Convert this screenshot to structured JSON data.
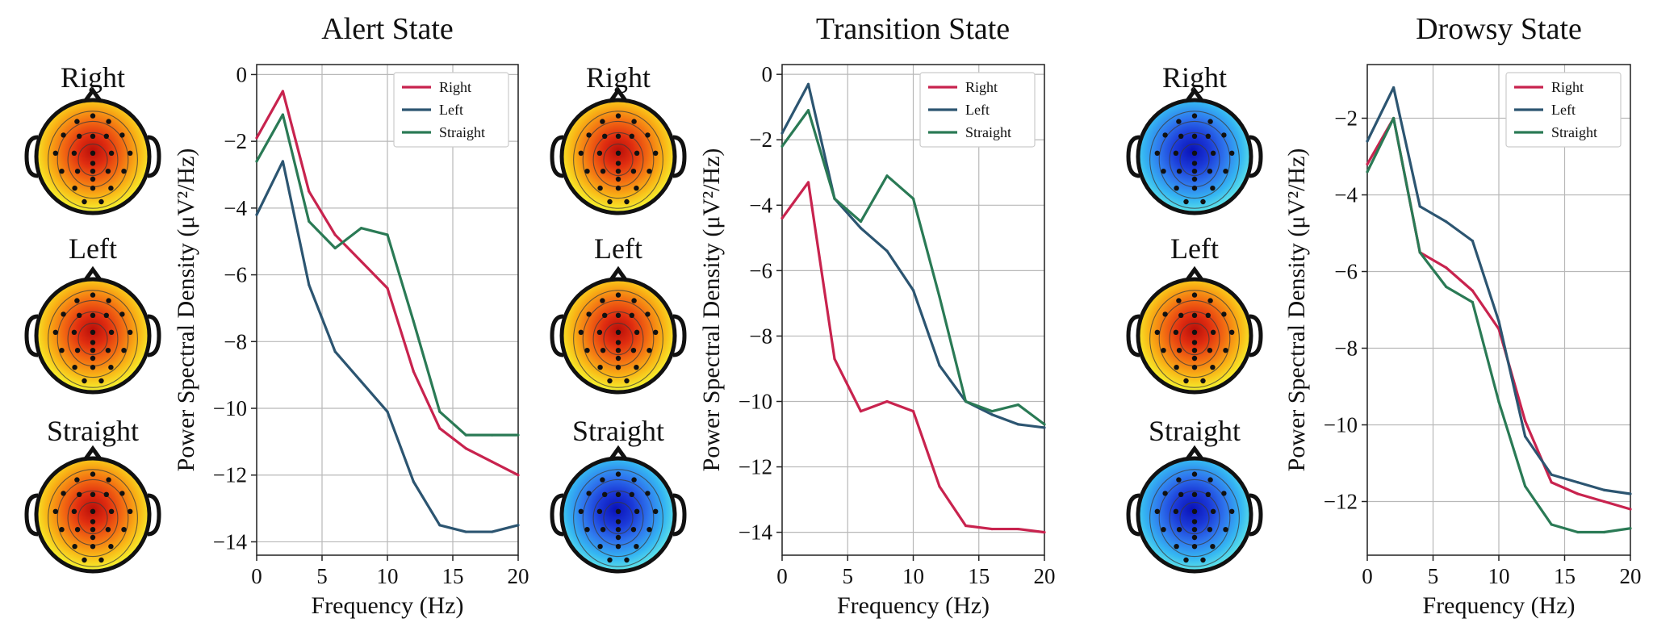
{
  "chart_data": [
    {
      "type": "line",
      "title": "Alert State",
      "xlabel": "Frequency (Hz)",
      "ylabel": "Power Spectral Density (μV²/Hz)",
      "xlim": [
        0,
        20
      ],
      "ylim": [
        -14.4,
        0.3
      ],
      "xticks": [
        0,
        5,
        10,
        15,
        20
      ],
      "yticks": [
        0,
        -2,
        -4,
        -6,
        -8,
        -10,
        -12,
        -14
      ],
      "legend": "top-right",
      "x": [
        0,
        2,
        4,
        6,
        8,
        10,
        12,
        14,
        16,
        18,
        20
      ],
      "series": [
        {
          "name": "Right",
          "color": "#c8234e",
          "values": [
            -1.9,
            -0.5,
            -3.5,
            -4.8,
            -5.6,
            -6.4,
            -8.9,
            -10.6,
            -11.2,
            -11.6,
            -12.0
          ]
        },
        {
          "name": "Left",
          "color": "#2c5571",
          "values": [
            -4.2,
            -2.6,
            -6.3,
            -8.3,
            -9.2,
            -10.1,
            -12.2,
            -13.5,
            -13.7,
            -13.7,
            -13.5
          ]
        },
        {
          "name": "Straight",
          "color": "#2a7a55",
          "values": [
            -2.6,
            -1.2,
            -4.4,
            -5.2,
            -4.6,
            -4.8,
            -7.4,
            -10.1,
            -10.8,
            -10.8,
            -10.8
          ]
        }
      ],
      "topomaps": [
        {
          "label": "Right",
          "colormap": "warm"
        },
        {
          "label": "Left",
          "colormap": "warm"
        },
        {
          "label": "Straight",
          "colormap": "warm"
        }
      ]
    },
    {
      "type": "line",
      "title": "Transition State",
      "xlabel": "Frequency (Hz)",
      "ylabel": "Power Spectral Density (μV²/Hz)",
      "xlim": [
        0,
        20
      ],
      "ylim": [
        -14.7,
        0.3
      ],
      "xticks": [
        0,
        5,
        10,
        15,
        20
      ],
      "yticks": [
        0,
        -2,
        -4,
        -6,
        -8,
        -10,
        -12,
        -14
      ],
      "legend": "top-right",
      "x": [
        0,
        2,
        4,
        6,
        8,
        10,
        12,
        14,
        16,
        18,
        20
      ],
      "series": [
        {
          "name": "Right",
          "color": "#c8234e",
          "values": [
            -4.4,
            -3.3,
            -8.7,
            -10.3,
            -10.0,
            -10.3,
            -12.6,
            -13.8,
            -13.9,
            -13.9,
            -14.0
          ]
        },
        {
          "name": "Left",
          "color": "#2c5571",
          "values": [
            -1.8,
            -0.3,
            -3.8,
            -4.7,
            -5.4,
            -6.6,
            -8.9,
            -10.0,
            -10.4,
            -10.7,
            -10.8
          ]
        },
        {
          "name": "Straight",
          "color": "#2a7a55",
          "values": [
            -2.2,
            -1.1,
            -3.8,
            -4.5,
            -3.1,
            -3.8,
            -6.8,
            -10.0,
            -10.3,
            -10.1,
            -10.7
          ]
        }
      ],
      "topomaps": [
        {
          "label": "Right",
          "colormap": "warm"
        },
        {
          "label": "Left",
          "colormap": "warm"
        },
        {
          "label": "Straight",
          "colormap": "cool"
        }
      ]
    },
    {
      "type": "line",
      "title": "Drowsy State",
      "xlabel": "Frequency (Hz)",
      "ylabel": "Power Spectral Density (μV²/Hz)",
      "xlim": [
        0,
        20
      ],
      "ylim": [
        -13.4,
        -0.6
      ],
      "xticks": [
        0,
        5,
        10,
        15,
        20
      ],
      "yticks": [
        -2,
        -4,
        -6,
        -8,
        -10,
        -12
      ],
      "legend": "top-right",
      "x": [
        0,
        2,
        4,
        6,
        8,
        10,
        12,
        14,
        16,
        18,
        20
      ],
      "series": [
        {
          "name": "Right",
          "color": "#c8234e",
          "values": [
            -3.2,
            -2.0,
            -5.5,
            -5.9,
            -6.5,
            -7.5,
            -9.9,
            -11.5,
            -11.8,
            -12.0,
            -12.2
          ]
        },
        {
          "name": "Left",
          "color": "#2c5571",
          "values": [
            -2.6,
            -1.2,
            -4.3,
            -4.7,
            -5.2,
            -7.3,
            -10.3,
            -11.3,
            -11.5,
            -11.7,
            -11.8
          ]
        },
        {
          "name": "Straight",
          "color": "#2a7a55",
          "values": [
            -3.4,
            -2.0,
            -5.5,
            -6.4,
            -6.8,
            -9.4,
            -11.6,
            -12.6,
            -12.8,
            -12.8,
            -12.7
          ]
        }
      ],
      "topomaps": [
        {
          "label": "Right",
          "colormap": "cool"
        },
        {
          "label": "Left",
          "colormap": "warm"
        },
        {
          "label": "Straight",
          "colormap": "cool"
        }
      ]
    }
  ]
}
